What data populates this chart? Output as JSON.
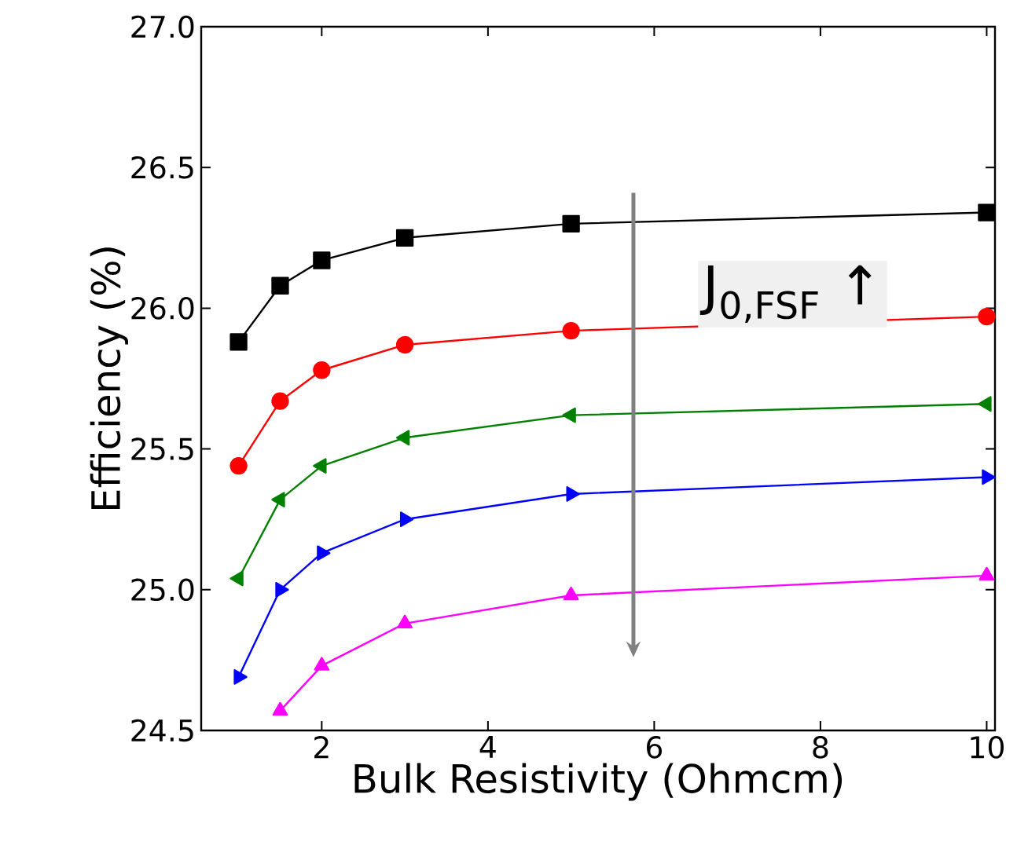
{
  "chart_data": {
    "type": "line",
    "xlabel": "Bulk Resistivity (Ohmcm)",
    "ylabel": "Efficiency (%)",
    "x": [
      1,
      1.5,
      2,
      3,
      5,
      10
    ],
    "series": [
      {
        "color": "#000000",
        "marker": "square",
        "values": [
          25.88,
          26.08,
          26.17,
          26.25,
          26.3,
          26.34
        ]
      },
      {
        "color": "#ff0000",
        "marker": "circle",
        "values": [
          25.44,
          25.67,
          25.78,
          25.87,
          25.92,
          25.97
        ]
      },
      {
        "color": "#008000",
        "marker": "triangle-left",
        "values": [
          25.04,
          25.32,
          25.44,
          25.54,
          25.62,
          25.66
        ]
      },
      {
        "color": "#0000ff",
        "marker": "triangle-right",
        "values": [
          24.69,
          25.0,
          25.13,
          25.25,
          25.34,
          25.4
        ]
      },
      {
        "color": "#ff00ff",
        "marker": "triangle",
        "values": [
          null,
          24.57,
          24.73,
          24.88,
          24.98,
          25.05
        ]
      }
    ],
    "annotations": [
      "J$_{0,FSF}$ ↑"
    ],
    "xlim": [
      0.55,
      10.1
    ],
    "ylim": [
      24.5,
      27.0
    ],
    "xticks": [
      2,
      4,
      6,
      8,
      10
    ],
    "yticks": [
      {
        "value": 24.5,
        "label": "24.5"
      },
      {
        "value": 25.0,
        "label": "25.0"
      },
      {
        "value": 25.5,
        "label": "25.5"
      },
      {
        "value": 26.0,
        "label": "26.0"
      },
      {
        "value": 26.5,
        "label": "26.5"
      },
      {
        "value": 27.0,
        "label": "27.0"
      }
    ]
  }
}
